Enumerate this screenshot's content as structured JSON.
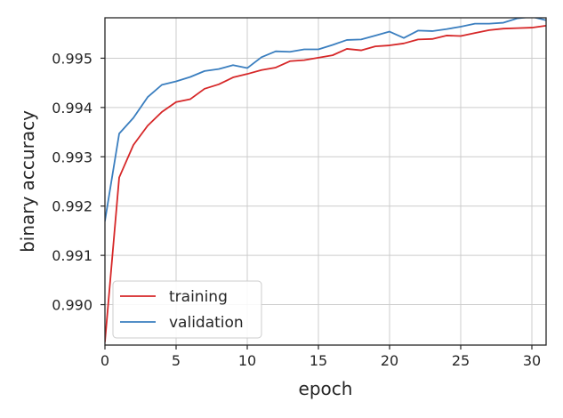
{
  "chart_data": {
    "type": "line",
    "title": "",
    "xlabel": "epoch",
    "ylabel": "binary accuracy",
    "xlim": [
      0,
      31
    ],
    "ylim": [
      0.98918,
      0.99582
    ],
    "xticks": [
      0,
      5,
      10,
      15,
      20,
      25,
      30
    ],
    "xtick_labels": [
      "0",
      "5",
      "10",
      "15",
      "20",
      "25",
      "30"
    ],
    "yticks": [
      0.99,
      0.991,
      0.992,
      0.993,
      0.994,
      0.995
    ],
    "ytick_labels": [
      "0.990",
      "0.991",
      "0.992",
      "0.993",
      "0.994",
      "0.995"
    ],
    "grid": true,
    "legend_position": "lower-left",
    "x": [
      0,
      1,
      2,
      3,
      4,
      5,
      6,
      7,
      8,
      9,
      10,
      11,
      12,
      13,
      14,
      15,
      16,
      17,
      18,
      19,
      20,
      21,
      22,
      23,
      24,
      25,
      26,
      27,
      28,
      29,
      30,
      31
    ],
    "series": [
      {
        "name": "training",
        "color": "#d62728",
        "values": [
          0.98925,
          0.99258,
          0.99324,
          0.99363,
          0.99391,
          0.99411,
          0.99417,
          0.99438,
          0.99447,
          0.99461,
          0.99468,
          0.99476,
          0.99481,
          0.99494,
          0.99496,
          0.99501,
          0.99506,
          0.99519,
          0.99516,
          0.99524,
          0.99526,
          0.9953,
          0.99538,
          0.99539,
          0.99546,
          0.99545,
          0.99551,
          0.99557,
          0.9956,
          0.99561,
          0.99562,
          0.99566
        ]
      },
      {
        "name": "validation",
        "color": "#3a7ebf",
        "values": [
          0.9917,
          0.99347,
          0.99379,
          0.99421,
          0.99446,
          0.99453,
          0.99462,
          0.99474,
          0.99478,
          0.99486,
          0.9948,
          0.99502,
          0.99514,
          0.99513,
          0.99518,
          0.99518,
          0.99527,
          0.99537,
          0.99538,
          0.99546,
          0.99554,
          0.99541,
          0.99556,
          0.99555,
          0.99559,
          0.99564,
          0.9957,
          0.9957,
          0.99572,
          0.99581,
          0.99584,
          0.99577
        ]
      }
    ]
  }
}
